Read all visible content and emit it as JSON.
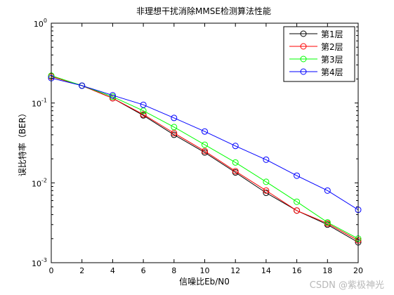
{
  "chart_data": {
    "type": "line",
    "title": "非理想干扰消除MMSE检测算法性能",
    "xlabel": "信噪比Eb/N0",
    "ylabel": "误比特率（BER）",
    "xlim": [
      0,
      20
    ],
    "ylim": [
      0.001,
      1
    ],
    "yscale": "log",
    "x_ticks": [
      "0",
      "2",
      "4",
      "6",
      "8",
      "10",
      "12",
      "14",
      "16",
      "18",
      "20"
    ],
    "y_ticks": [
      {
        "base": "10",
        "exp": "0"
      },
      {
        "base": "10",
        "exp": "-1"
      },
      {
        "base": "10",
        "exp": "-2"
      },
      {
        "base": "10",
        "exp": "-3"
      }
    ],
    "legend_position": "top-right",
    "marker": "circle",
    "x": [
      0,
      2,
      4,
      6,
      8,
      10,
      12,
      14,
      16,
      18,
      20
    ],
    "series": [
      {
        "name": "第1层",
        "color": "#000000",
        "values": [
          0.215,
          0.165,
          0.115,
          0.07,
          0.04,
          0.024,
          0.0135,
          0.0075,
          0.0045,
          0.003,
          0.0018
        ]
      },
      {
        "name": "第2层",
        "color": "#ff0000",
        "values": [
          0.215,
          0.165,
          0.115,
          0.072,
          0.042,
          0.025,
          0.014,
          0.008,
          0.0045,
          0.0031,
          0.0019
        ]
      },
      {
        "name": "第3层",
        "color": "#00ff00",
        "values": [
          0.22,
          0.165,
          0.12,
          0.08,
          0.05,
          0.03,
          0.018,
          0.0103,
          0.0058,
          0.0032,
          0.002
        ]
      },
      {
        "name": "第4层",
        "color": "#0000ff",
        "values": [
          0.205,
          0.165,
          0.125,
          0.095,
          0.065,
          0.044,
          0.029,
          0.0195,
          0.0123,
          0.008,
          0.0046
        ]
      }
    ]
  },
  "watermark": "CSDN @紫极神光"
}
